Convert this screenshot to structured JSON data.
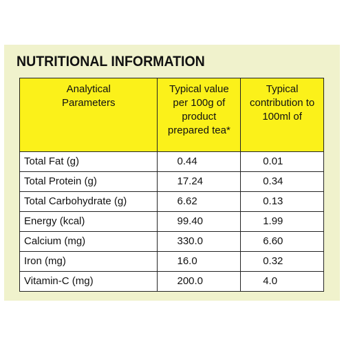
{
  "title": "NUTRITIONAL INFORMATION",
  "colors": {
    "panel_background": "#f0f2cc",
    "header_background": "#fbf11a",
    "cell_background": "#ffffff",
    "border": "#222222"
  },
  "table": {
    "headers": [
      [
        "Analytical",
        "Parameters"
      ],
      [
        "Typical value",
        "per 100g of",
        "product",
        "prepared tea*"
      ],
      [
        "Typical",
        "contribution to",
        "100ml of"
      ]
    ],
    "rows": [
      {
        "parameter": "Total Fat (g)",
        "per_100g": "0.44",
        "per_100ml": "0.01"
      },
      {
        "parameter": "Total Protein (g)",
        "per_100g": "17.24",
        "per_100ml": "0.34"
      },
      {
        "parameter": "Total Carbohydrate (g)",
        "per_100g": "6.62",
        "per_100ml": "0.13"
      },
      {
        "parameter": "Energy (kcal)",
        "per_100g": "99.40",
        "per_100ml": "1.99"
      },
      {
        "parameter": "Calcium (mg)",
        "per_100g": "330.0",
        "per_100ml": "6.60"
      },
      {
        "parameter": "Iron (mg)",
        "per_100g": "16.0",
        "per_100ml": "0.32"
      },
      {
        "parameter": "Vitamin-C (mg)",
        "per_100g": "200.0",
        "per_100ml": "4.0"
      }
    ]
  }
}
